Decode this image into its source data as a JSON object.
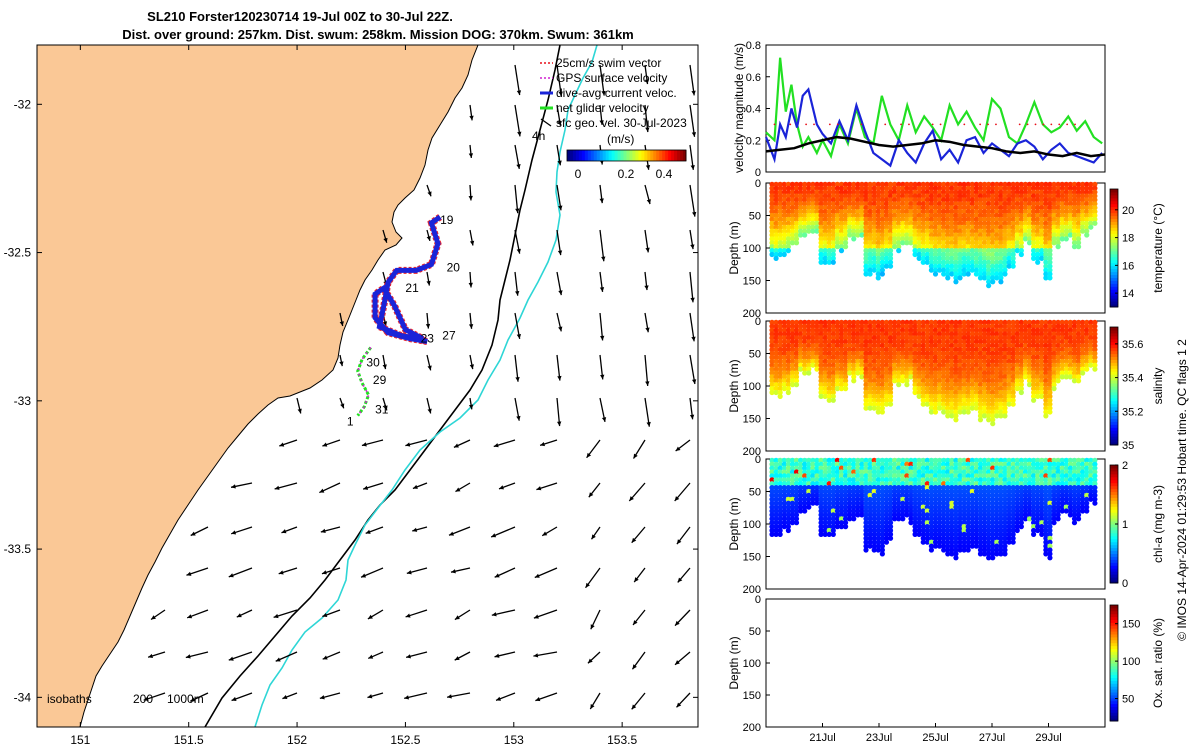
{
  "title": {
    "line1": "SL210 Forster120230714 19-Jul 00Z to 30-Jul 22Z.",
    "line2": "Dist. over ground: 257km. Dist. swum: 258km. Mission DOG: 370km. Swum: 361km"
  },
  "side_note": "© IMOS 14-Apr-2024 01:29:53 Hobart time. QC flags 1  2",
  "colors": {
    "land": "#FAC896",
    "isobath_200": "#000000",
    "isobath_1000": "#2ED6D6",
    "swim_vector": "#E8101A",
    "gps_velocity": "#D020D0",
    "dive_avg": "#1A24D8",
    "net_glider": "#22E022",
    "sfc_geo": "#000000"
  },
  "chart_data": [
    {
      "type": "map",
      "xlim": [
        150.8,
        153.85
      ],
      "ylim": [
        -34.1,
        -31.8
      ],
      "xticks": [
        "151",
        "151.5",
        "152",
        "152.5",
        "153",
        "153.5"
      ],
      "xtick_values": [
        151,
        151.5,
        152,
        152.5,
        153,
        153.5
      ],
      "yticks": [
        "-32",
        "-32.5",
        "-33",
        "-33.5",
        "-34"
      ],
      "ytick_values": [
        -32,
        -32.5,
        -33,
        -33.5,
        -34
      ],
      "legend": [
        {
          "label": "25cm/s swim vector",
          "color": "#E8101A"
        },
        {
          "label": "GPS surface velocity",
          "color": "#D020D0"
        },
        {
          "label": "dive-avg current veloc.",
          "color": "#1A24D8"
        },
        {
          "label": "net glider velocity",
          "color": "#22E022"
        },
        {
          "label": "sfc geo. vel. 30-Jul-2023",
          "color": "#000000"
        }
      ],
      "legend_position": "top-right",
      "legend_note": "4h",
      "colorbar": {
        "label": "(m/s)",
        "ticks": [
          "0",
          "0.2",
          "0.4"
        ],
        "range": [
          0,
          0.5
        ]
      },
      "isobath_label": "isobaths",
      "isobath_values": [
        "200",
        "1000m"
      ],
      "track_day_labels": [
        {
          "text": "19",
          "lon": 152.66,
          "lat": -32.39
        },
        {
          "text": "20",
          "lon": 152.69,
          "lat": -32.55
        },
        {
          "text": "21",
          "lon": 152.5,
          "lat": -32.62
        },
        {
          "text": "23",
          "lon": 152.57,
          "lat": -32.79
        },
        {
          "text": "27",
          "lon": 152.67,
          "lat": -32.78
        },
        {
          "text": "30",
          "lon": 152.32,
          "lat": -32.87
        },
        {
          "text": "29",
          "lon": 152.35,
          "lat": -32.93
        },
        {
          "text": "31",
          "lon": 152.36,
          "lat": -33.03
        },
        {
          "text": "1",
          "lon": 152.23,
          "lat": -33.07
        }
      ]
    },
    {
      "type": "line",
      "ylabel": "velocity magnitude (m/s)",
      "ylim": [
        0,
        0.8
      ],
      "yticks": [
        "0",
        "0.2",
        "0.4",
        "0.6",
        "0.8"
      ],
      "x_range_days": [
        19.0,
        31.0
      ],
      "series": [
        {
          "name": "net glider velocity",
          "color": "#22E022",
          "x": [
            19.0,
            19.3,
            19.5,
            19.7,
            19.9,
            20.1,
            20.3,
            20.5,
            20.8,
            21.0,
            21.3,
            21.6,
            21.9,
            22.2,
            22.5,
            22.8,
            23.1,
            23.4,
            23.7,
            24.0,
            24.3,
            24.6,
            24.9,
            25.2,
            25.5,
            25.8,
            26.1,
            26.4,
            26.7,
            27.0,
            27.3,
            27.6,
            27.9,
            28.2,
            28.5,
            28.8,
            29.1,
            29.4,
            29.7,
            30.0,
            30.3,
            30.6,
            30.9
          ],
          "values": [
            0.25,
            0.2,
            0.72,
            0.38,
            0.55,
            0.3,
            0.16,
            0.22,
            0.12,
            0.2,
            0.1,
            0.3,
            0.18,
            0.4,
            0.22,
            0.18,
            0.48,
            0.3,
            0.2,
            0.42,
            0.25,
            0.35,
            0.28,
            0.2,
            0.42,
            0.3,
            0.38,
            0.28,
            0.2,
            0.46,
            0.4,
            0.22,
            0.18,
            0.3,
            0.44,
            0.3,
            0.25,
            0.28,
            0.35,
            0.26,
            0.32,
            0.22,
            0.18
          ]
        },
        {
          "name": "dive-avg current veloc.",
          "color": "#1A24D8",
          "x": [
            19.0,
            19.3,
            19.5,
            19.7,
            19.9,
            20.1,
            20.3,
            20.5,
            20.8,
            21.0,
            21.3,
            21.6,
            21.9,
            22.2,
            22.5,
            22.8,
            23.1,
            23.4,
            23.7,
            24.0,
            24.3,
            24.6,
            24.9,
            25.2,
            25.5,
            25.8,
            26.1,
            26.4,
            26.7,
            27.0,
            27.3,
            27.6,
            27.9,
            28.2,
            28.5,
            28.8,
            29.1,
            29.4,
            29.7,
            30.0,
            30.3,
            30.6,
            30.9
          ],
          "values": [
            0.22,
            0.08,
            0.3,
            0.22,
            0.4,
            0.28,
            0.48,
            0.52,
            0.3,
            0.24,
            0.18,
            0.32,
            0.2,
            0.42,
            0.26,
            0.12,
            0.08,
            0.04,
            0.2,
            0.12,
            0.06,
            0.18,
            0.26,
            0.08,
            0.14,
            0.06,
            0.2,
            0.22,
            0.12,
            0.18,
            0.14,
            0.1,
            0.18,
            0.2,
            0.16,
            0.08,
            0.14,
            0.18,
            0.12,
            0.1,
            0.08,
            0.06,
            0.12
          ]
        },
        {
          "name": "sfc geo. vel. 30-Jul-2023",
          "color": "#000000",
          "x": [
            19.0,
            19.5,
            20.0,
            20.5,
            21.0,
            21.5,
            22.0,
            22.5,
            23.0,
            23.5,
            24.0,
            24.5,
            25.0,
            25.5,
            26.0,
            26.5,
            27.0,
            27.5,
            28.0,
            28.5,
            29.0,
            29.5,
            30.0,
            30.5,
            31.0
          ],
          "values": [
            0.13,
            0.14,
            0.15,
            0.18,
            0.2,
            0.22,
            0.21,
            0.19,
            0.17,
            0.16,
            0.17,
            0.18,
            0.2,
            0.19,
            0.17,
            0.16,
            0.15,
            0.13,
            0.12,
            0.13,
            0.11,
            0.1,
            0.12,
            0.1,
            0.11
          ]
        }
      ]
    },
    {
      "type": "scatter",
      "ylabel": "Depth (m)",
      "ylim": [
        200,
        0
      ],
      "yticks": [
        "0",
        "50",
        "100",
        "150",
        "200"
      ],
      "colorbar": {
        "label": "temperature (°C)",
        "ticks": [
          "14",
          "16",
          "18",
          "20"
        ],
        "range": [
          13,
          21.5
        ]
      }
    },
    {
      "type": "scatter",
      "ylabel": "Depth (m)",
      "ylim": [
        200,
        0
      ],
      "yticks": [
        "0",
        "50",
        "100",
        "150",
        "200"
      ],
      "colorbar": {
        "label": "salinity",
        "ticks": [
          "35",
          "35.2",
          "35.4",
          "35.6"
        ],
        "range": [
          35.0,
          35.7
        ]
      }
    },
    {
      "type": "scatter",
      "ylabel": "Depth (m)",
      "ylim": [
        200,
        0
      ],
      "yticks": [
        "0",
        "50",
        "100",
        "150",
        "200"
      ],
      "colorbar": {
        "label": "chl-a (mg m-3)",
        "ticks": [
          "0",
          "1",
          "2"
        ],
        "range": [
          0,
          2
        ]
      }
    },
    {
      "type": "scatter",
      "ylabel": "Depth (m)",
      "ylim": [
        200,
        0
      ],
      "yticks": [
        "0",
        "50",
        "100",
        "150",
        "200"
      ],
      "xticks": [
        "21Jul",
        "23Jul",
        "25Jul",
        "27Jul",
        "29Jul"
      ],
      "xtick_values": [
        21,
        23,
        25,
        27,
        29
      ],
      "colorbar": {
        "label": "Ox. sat. ratio (%)",
        "ticks": [
          "50",
          "100",
          "150"
        ],
        "range": [
          20,
          175
        ]
      }
    }
  ]
}
